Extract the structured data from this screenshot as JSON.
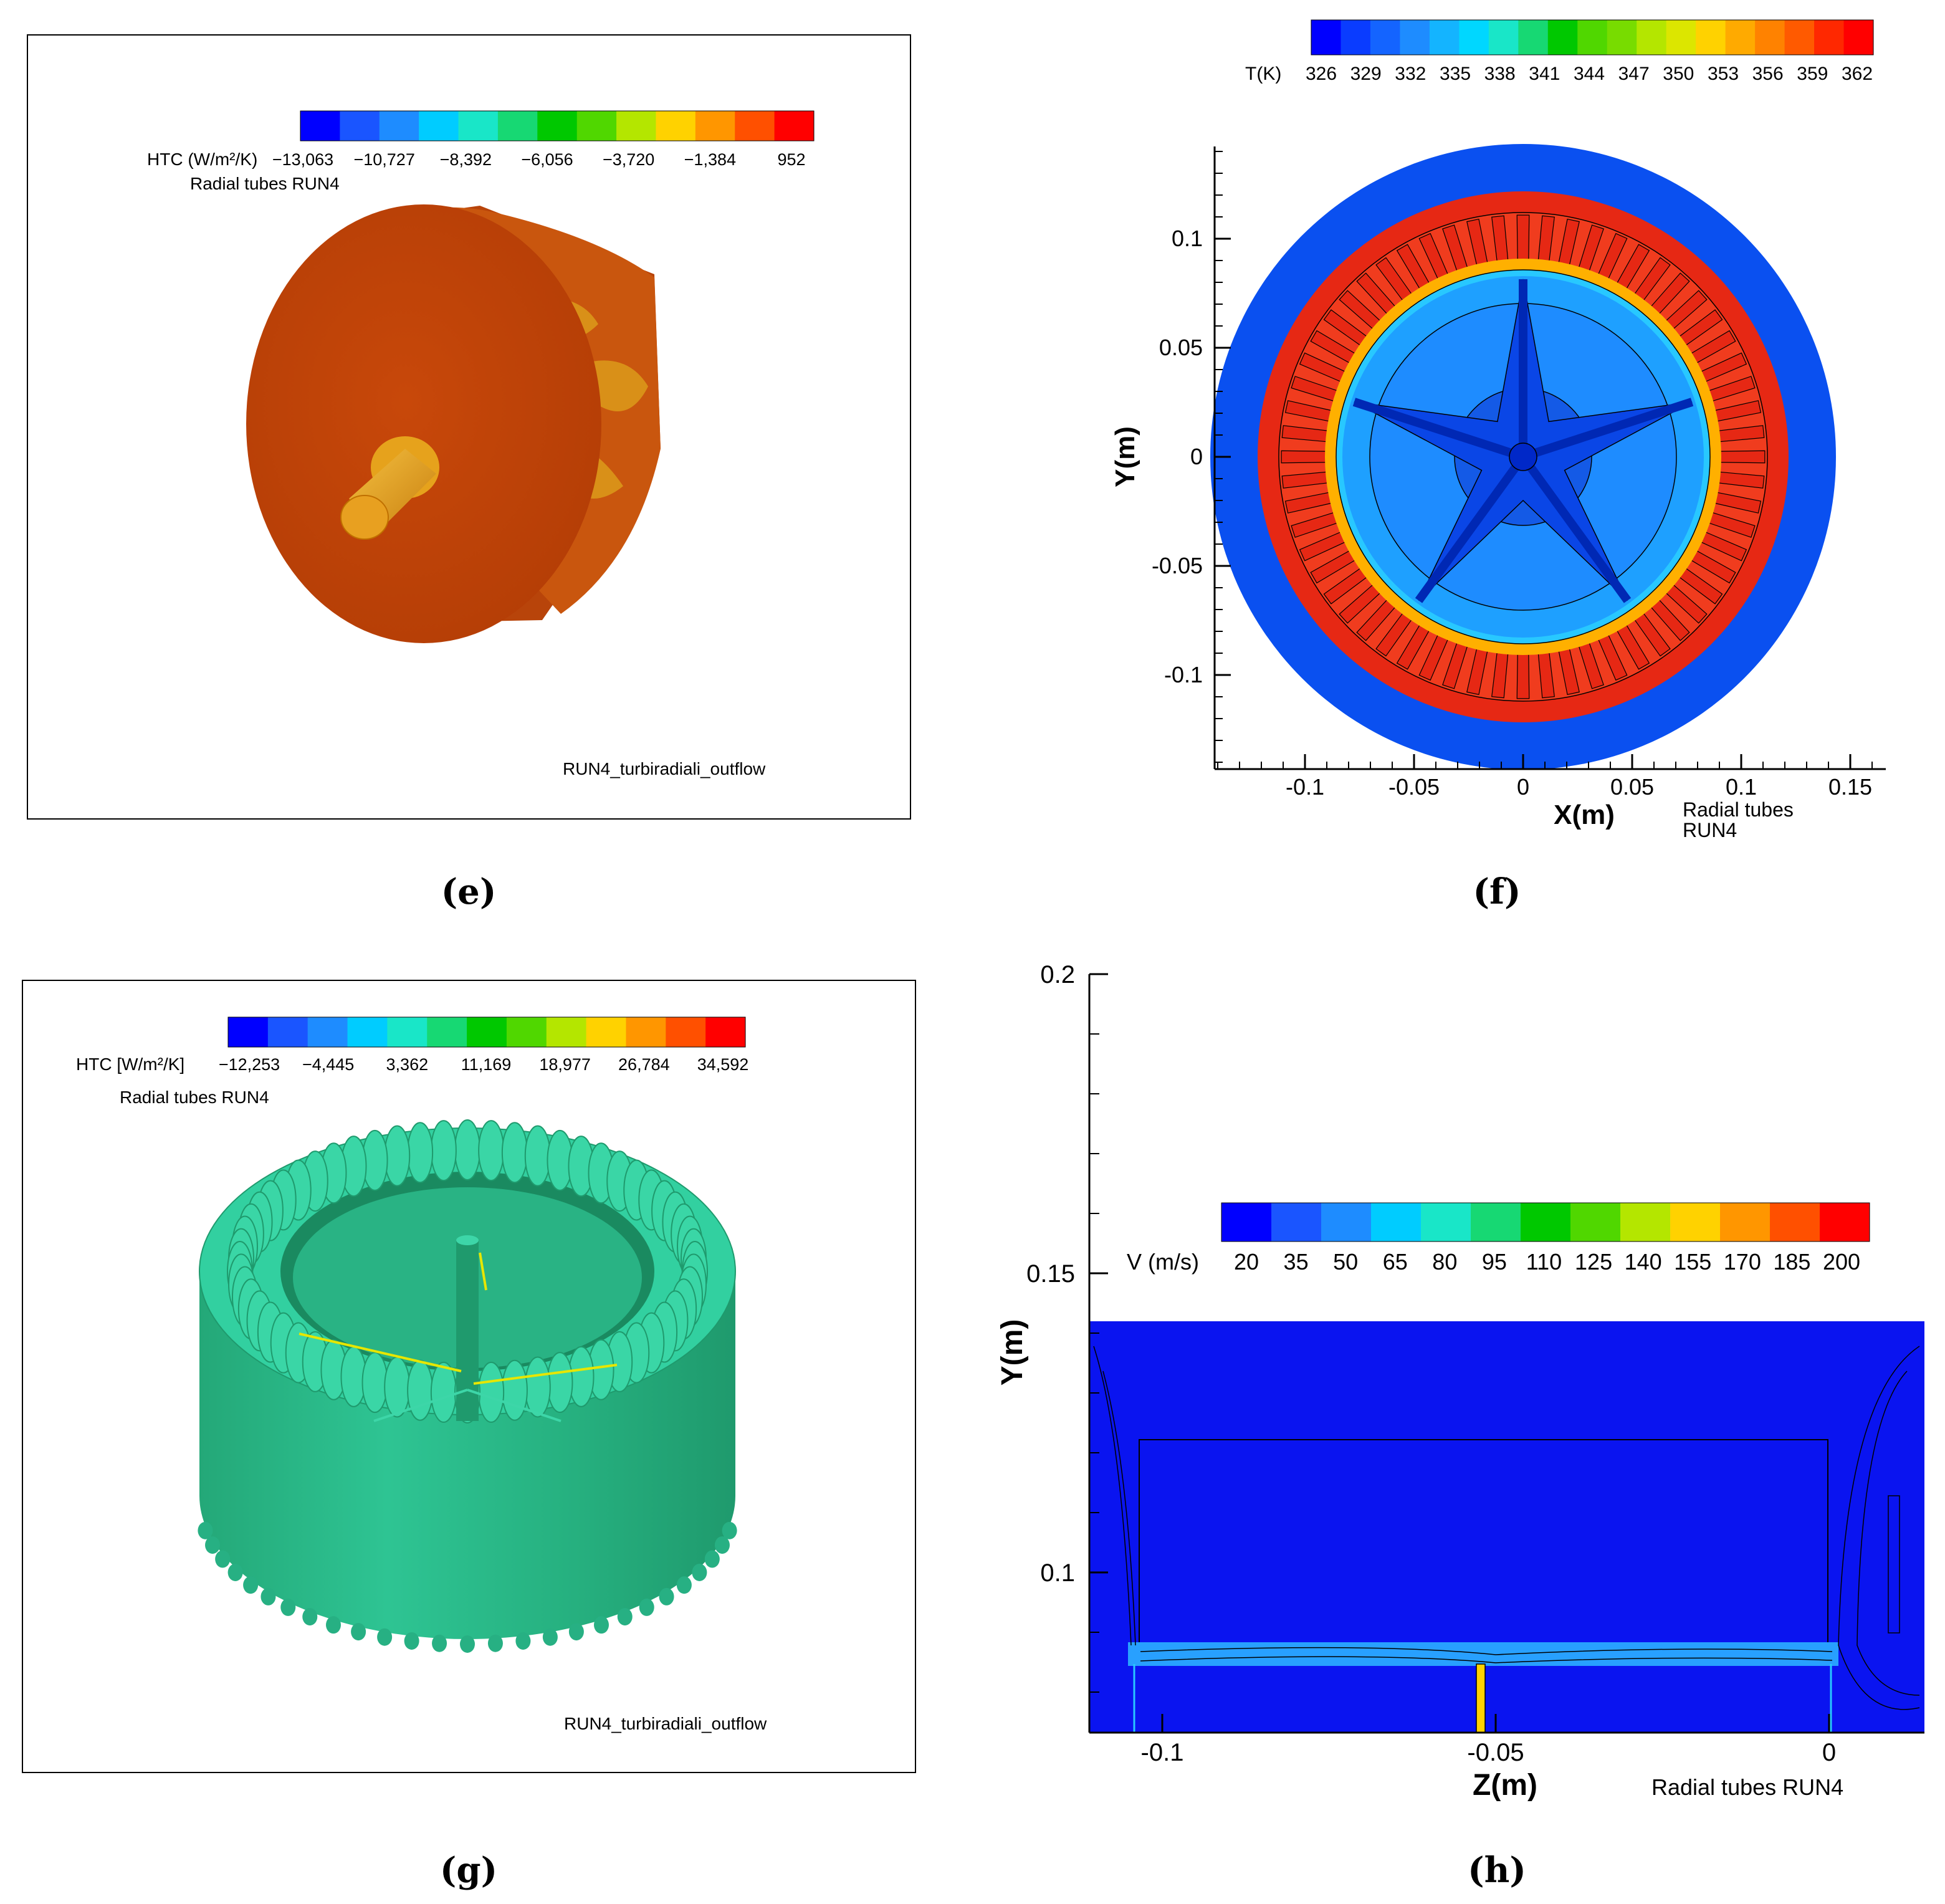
{
  "panels": {
    "e": {
      "caption": "(e)",
      "legend_title": "HTC (W/m²/K)",
      "legend_labels": [
        "−13,063",
        "−10,727",
        "−8,392",
        "−6,056",
        "−3,720",
        "−1,384",
        "952"
      ],
      "subtitle": "Radial tubes RUN4",
      "footer": "RUN4_turbiradiali_outflow",
      "colorbar": [
        "#0000ff",
        "#1a55ff",
        "#1e8cff",
        "#00ccff",
        "#19e6c8",
        "#17d873",
        "#00c800",
        "#50d700",
        "#b4e600",
        "#ffd200",
        "#ff9600",
        "#ff5000",
        "#ff0000"
      ]
    },
    "f": {
      "caption": "(f)",
      "legend_title": "T(K)",
      "legend_labels": [
        "326",
        "329",
        "332",
        "335",
        "338",
        "341",
        "344",
        "347",
        "350",
        "353",
        "356",
        "359",
        "362"
      ],
      "x_axis_label": "X(m)",
      "y_axis_label": "Y(m)",
      "x_ticks": [
        "-0.1",
        "-0.05",
        "0",
        "0.05",
        "0.1",
        "0.15"
      ],
      "y_ticks": [
        "0.1",
        "0.05",
        "0",
        "-0.05",
        "-0.1"
      ],
      "footer_line1": "Radial tubes",
      "footer_line2": "RUN4",
      "colorbar": [
        "#0000ff",
        "#0a3cff",
        "#1464ff",
        "#1e8cff",
        "#14b4ff",
        "#00d7ff",
        "#19e6c8",
        "#17d873",
        "#00c800",
        "#50d700",
        "#78dc00",
        "#b4e600",
        "#dce600",
        "#ffd200",
        "#ffaa00",
        "#ff8200",
        "#ff5a00",
        "#ff2800",
        "#ff0000"
      ]
    },
    "g": {
      "caption": "(g)",
      "legend_title": "HTC [W/m²/K]",
      "legend_labels": [
        "−12,253",
        "−4,445",
        "3,362",
        "11,169",
        "18,977",
        "26,784",
        "34,592"
      ],
      "subtitle": "Radial tubes RUN4",
      "footer": "RUN4_turbiradiali_outflow",
      "colorbar": [
        "#0000ff",
        "#1a55ff",
        "#1e8cff",
        "#00ccff",
        "#19e6c8",
        "#17d873",
        "#00c800",
        "#50d700",
        "#b4e600",
        "#ffd200",
        "#ff9600",
        "#ff5000",
        "#ff0000"
      ]
    },
    "h": {
      "caption": "(h)",
      "legend_title": "V (m/s)",
      "legend_labels": [
        "20",
        "35",
        "50",
        "65",
        "80",
        "95",
        "110",
        "125",
        "140",
        "155",
        "170",
        "185",
        "200"
      ],
      "x_axis_label": "Z(m)",
      "y_axis_label": "Y(m)",
      "x_ticks": [
        "-0.1",
        "-0.05",
        "0"
      ],
      "y_ticks": [
        "0.2",
        "0.15",
        "0.1"
      ],
      "footer": "Radial tubes RUN4",
      "colorbar": [
        "#0000ff",
        "#1a55ff",
        "#1e8cff",
        "#00ccff",
        "#19e6c8",
        "#17d873",
        "#00c800",
        "#50d700",
        "#b4e600",
        "#ffd200",
        "#ff9600",
        "#ff5000",
        "#ff0000"
      ]
    }
  },
  "colors": {
    "housing_orange": "#c94a06",
    "shaft_orange": "#e8a020",
    "stator_green": "#2fc896",
    "field_blue": "#0a3cff",
    "hot_red": "#e62814"
  }
}
